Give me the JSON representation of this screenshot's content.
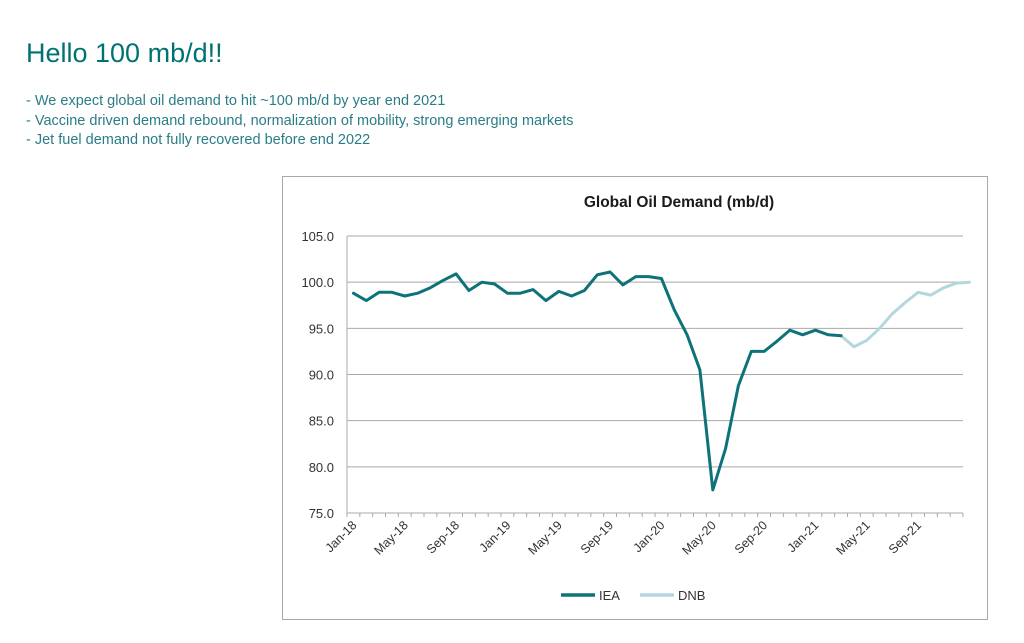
{
  "slide": {
    "title": "Hello 100 mb/d!!",
    "bullets": [
      "- We expect global oil demand to hit ~100 mb/d by year end 2021",
      "- Vaccine driven demand rebound, normalization of mobility, strong emerging markets",
      "- Jet fuel demand not fully recovered before end 2022"
    ]
  },
  "colors": {
    "title": "#007272",
    "bullet_text": "#2a7d86",
    "iea": "#0e7378",
    "dnb": "#b2d7dc",
    "grid": "#a9a9a9"
  },
  "chart_data": {
    "type": "line",
    "title": "Global Oil Demand (mb/d)",
    "xlabel": "",
    "ylabel": "",
    "ylim": [
      75,
      105
    ],
    "yticks": [
      "105.0",
      "100.0",
      "95.0",
      "90.0",
      "85.0",
      "80.0",
      "75.0"
    ],
    "ytick_values": [
      105,
      100,
      95,
      90,
      85,
      80,
      75
    ],
    "x_ticks": [
      "Jan-18",
      "May-18",
      "Sep-18",
      "Jan-19",
      "May-19",
      "Sep-19",
      "Jan-20",
      "May-20",
      "Sep-20",
      "Jan-21",
      "May-21",
      "Sep-21"
    ],
    "x_start": "Jan-18",
    "x_end": "Dec-21",
    "grid": "horizontal",
    "legend_position": "bottom",
    "series": [
      {
        "name": "IEA",
        "start": "Jan-18",
        "values": [
          98.8,
          98.0,
          98.9,
          98.9,
          98.5,
          98.8,
          99.4,
          100.2,
          100.9,
          99.1,
          100.0,
          99.8,
          98.8,
          98.8,
          99.2,
          98.0,
          99.0,
          98.5,
          99.1,
          100.8,
          101.1,
          99.7,
          100.6,
          100.6,
          100.4,
          97.0,
          94.3,
          90.5,
          77.5,
          82.0,
          88.8,
          92.5,
          92.5,
          93.6,
          94.8,
          94.3,
          94.8,
          94.3,
          94.2
        ]
      },
      {
        "name": "DNB",
        "start": "Mar-21",
        "values": [
          94.2,
          93.0,
          93.7,
          95.0,
          96.6,
          97.8,
          98.9,
          98.6,
          99.4,
          99.9,
          100.0
        ]
      }
    ]
  }
}
